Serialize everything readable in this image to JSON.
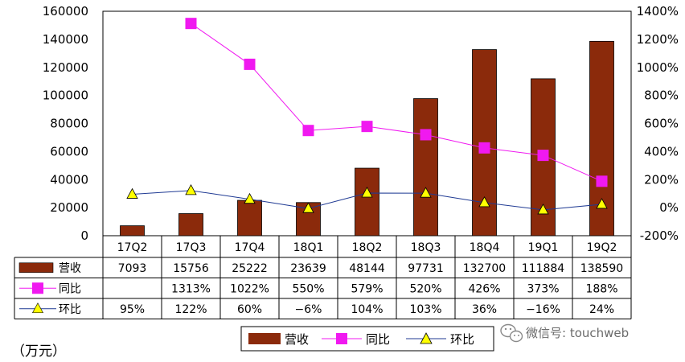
{
  "chart_data": {
    "type": "bar",
    "categories": [
      "17Q2",
      "17Q3",
      "17Q4",
      "18Q1",
      "18Q2",
      "18Q3",
      "18Q4",
      "19Q1",
      "19Q2"
    ],
    "series": [
      {
        "name": "营收",
        "type": "bar",
        "axis": "left",
        "values": [
          7093,
          15756,
          25222,
          23639,
          48144,
          97731,
          132700,
          111884,
          138590
        ],
        "labels": [
          "7093",
          "15756",
          "25222",
          "23639",
          "48144",
          "97731",
          "132700",
          "111884",
          "138590"
        ]
      },
      {
        "name": "同比",
        "type": "line",
        "axis": "right",
        "marker": "square",
        "values": [
          null,
          1313,
          1022,
          550,
          579,
          520,
          426,
          373,
          188
        ],
        "labels": [
          "",
          "1313%",
          "1022%",
          "550%",
          "579%",
          "520%",
          "426%",
          "373%",
          "188%"
        ]
      },
      {
        "name": "环比",
        "type": "line",
        "axis": "right",
        "marker": "triangle",
        "values": [
          95,
          122,
          60,
          -6,
          104,
          103,
          36,
          -16,
          24
        ],
        "labels": [
          "95%",
          "122%",
          "60%",
          "−6%",
          "104%",
          "103%",
          "36%",
          "−16%",
          "24%"
        ]
      }
    ],
    "y_left": {
      "range": [
        0,
        160000
      ],
      "ticks": [
        "0",
        "20000",
        "40000",
        "60000",
        "80000",
        "100000",
        "120000",
        "140000",
        "160000"
      ]
    },
    "y_right": {
      "range": [
        -200,
        1400
      ],
      "ticks": [
        "-200%",
        "0%",
        "200%",
        "400%",
        "600%",
        "800%",
        "1000%",
        "1200%",
        "1400%"
      ]
    },
    "unit_label": "（万元）",
    "grid": false,
    "legend_position": "bottom-center",
    "colors": {
      "bar": "#8B2A0B",
      "yoy": "#F019F0",
      "qoq_line": "#1F3A93",
      "qoq_marker": "#FFFF00"
    }
  },
  "watermark": "微信号: touchweb"
}
